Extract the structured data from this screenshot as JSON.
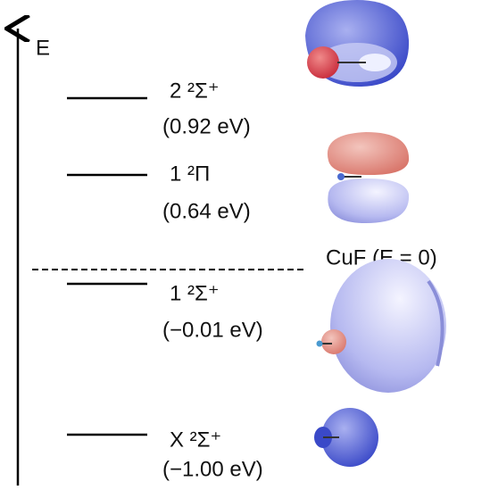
{
  "axis_label": "E",
  "reference_label": "CuF (E = 0)",
  "levels": [
    {
      "state": "2 ²Σ⁺",
      "energy": "(0.92 eV)"
    },
    {
      "state": "1 ²Π",
      "energy": "(0.64 eV)"
    },
    {
      "state": "1 ²Σ⁺",
      "energy": "(−0.01 eV)"
    },
    {
      "state": "X ²Σ⁺",
      "energy": "(−1.00 eV)"
    }
  ]
}
